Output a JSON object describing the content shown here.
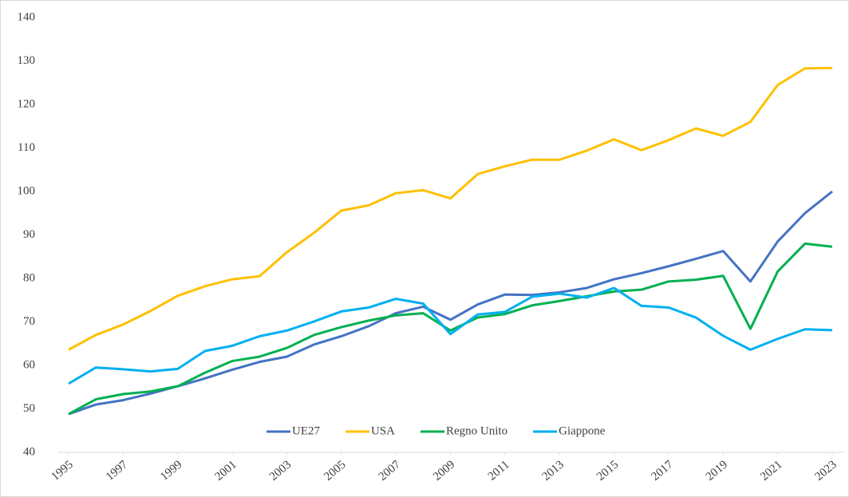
{
  "chart_data": {
    "type": "line",
    "x": [
      1995,
      1996,
      1997,
      1998,
      1999,
      2000,
      2001,
      2002,
      2003,
      2004,
      2005,
      2006,
      2007,
      2008,
      2009,
      2010,
      2011,
      2012,
      2013,
      2014,
      2015,
      2016,
      2017,
      2018,
      2019,
      2020,
      2021,
      2022,
      2023
    ],
    "xlim": [
      1995,
      2023
    ],
    "xticks": [
      1995,
      1997,
      1999,
      2001,
      2003,
      2005,
      2007,
      2009,
      2011,
      2013,
      2015,
      2017,
      2019,
      2021,
      2023
    ],
    "ylim": [
      40,
      140
    ],
    "yticks": [
      40,
      50,
      60,
      70,
      80,
      90,
      100,
      110,
      120,
      130,
      140
    ],
    "legend": "bottom",
    "series": [
      {
        "name": "UE27",
        "color": "#4472c4",
        "values": [
          48.8,
          51,
          52,
          53.5,
          55.2,
          57,
          59,
          60.8,
          62,
          64.8,
          66.7,
          69,
          72,
          73.5,
          70.5,
          74,
          76.3,
          76.2,
          76.8,
          77.8,
          79.8,
          81.2,
          82.8,
          84.5,
          86.3,
          79.3,
          88.5,
          95,
          100
        ]
      },
      {
        "name": "USA",
        "color": "#ffc000",
        "values": [
          63.6,
          67,
          69.4,
          72.5,
          76,
          78.2,
          79.8,
          80.5,
          86,
          90.5,
          95.6,
          96.8,
          99.6,
          100.3,
          98.4,
          104,
          105.8,
          107.3,
          107.3,
          109.4,
          112,
          109.5,
          111.8,
          114.5,
          112.8,
          116,
          124.5,
          128.3,
          128.4
        ]
      },
      {
        "name": "Regno Unito",
        "color": "#00b050",
        "values": [
          48.8,
          52.2,
          53.4,
          54,
          55.2,
          58.3,
          61,
          62,
          64,
          67,
          68.8,
          70.3,
          71.5,
          72,
          68,
          71,
          71.8,
          73.8,
          74.8,
          75.9,
          77,
          77.4,
          79.3,
          79.7,
          80.6,
          68.4,
          81.6,
          88,
          87.3
        ]
      },
      {
        "name": "Giappone",
        "color": "#00b0f0",
        "values": [
          55.8,
          59.5,
          59.1,
          58.6,
          59.2,
          63.3,
          64.5,
          66.7,
          68,
          70.1,
          72.4,
          73.3,
          75.3,
          74.2,
          67.2,
          71.7,
          72.3,
          75.8,
          76.5,
          75.6,
          77.8,
          73.7,
          73.3,
          71,
          66.8,
          63.6,
          66.1,
          68.3,
          68.1
        ]
      }
    ]
  }
}
